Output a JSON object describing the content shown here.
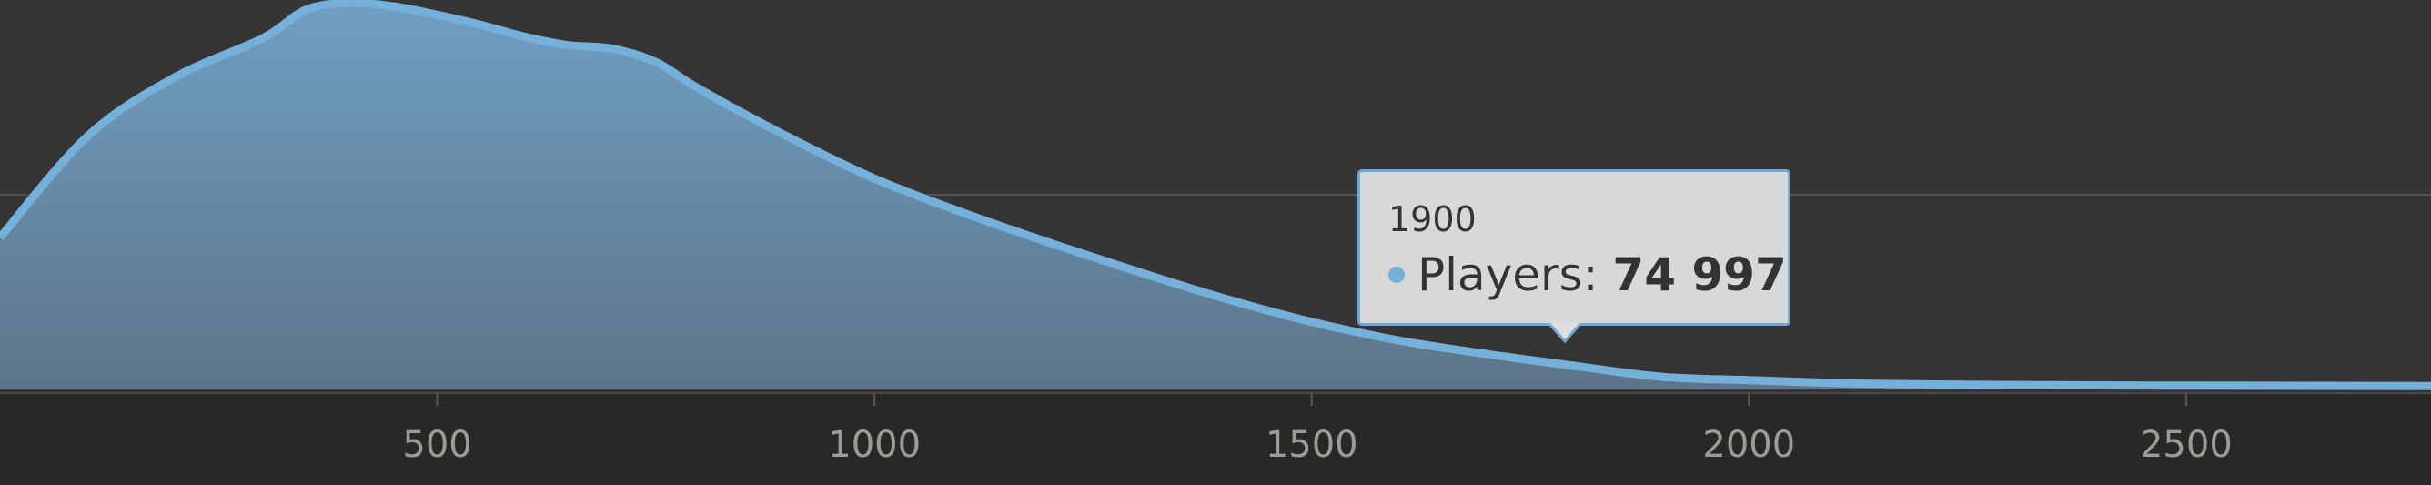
{
  "chart_data": {
    "type": "area",
    "title": "",
    "xlabel": "",
    "ylabel": "",
    "xlim": [
      0,
      2780
    ],
    "ylim": [
      0,
      2200000
    ],
    "x_ticks": [
      "500",
      "1000",
      "1500",
      "2000",
      "2500"
    ],
    "grid": true,
    "legend": "none",
    "colors": {
      "series": "#74b0da",
      "background": "#363434",
      "axis_band": "#2a2826",
      "grid": "#55524f",
      "tick_text": "#9d9b98"
    },
    "series": [
      {
        "name": "Players",
        "x": [
          0,
          100,
          200,
          300,
          350,
          400,
          450,
          500,
          550,
          600,
          650,
          700,
          750,
          800,
          900,
          1000,
          1100,
          1200,
          1300,
          1400,
          1500,
          1600,
          1700,
          1800,
          1900,
          2000,
          2100,
          2200,
          2400,
          2600,
          2780
        ],
        "y": [
          900000,
          1500000,
          1850000,
          2080000,
          2250000,
          2290000,
          2270000,
          2220000,
          2160000,
          2090000,
          2040000,
          2020000,
          1940000,
          1780000,
          1500000,
          1250000,
          1050000,
          870000,
          700000,
          540000,
          400000,
          290000,
          210000,
          140000,
          74997,
          55000,
          38000,
          30000,
          24000,
          22000,
          20000
        ]
      }
    ]
  },
  "tooltip": {
    "x_label": "1900",
    "series_name": "Players:",
    "value": "74 997"
  }
}
